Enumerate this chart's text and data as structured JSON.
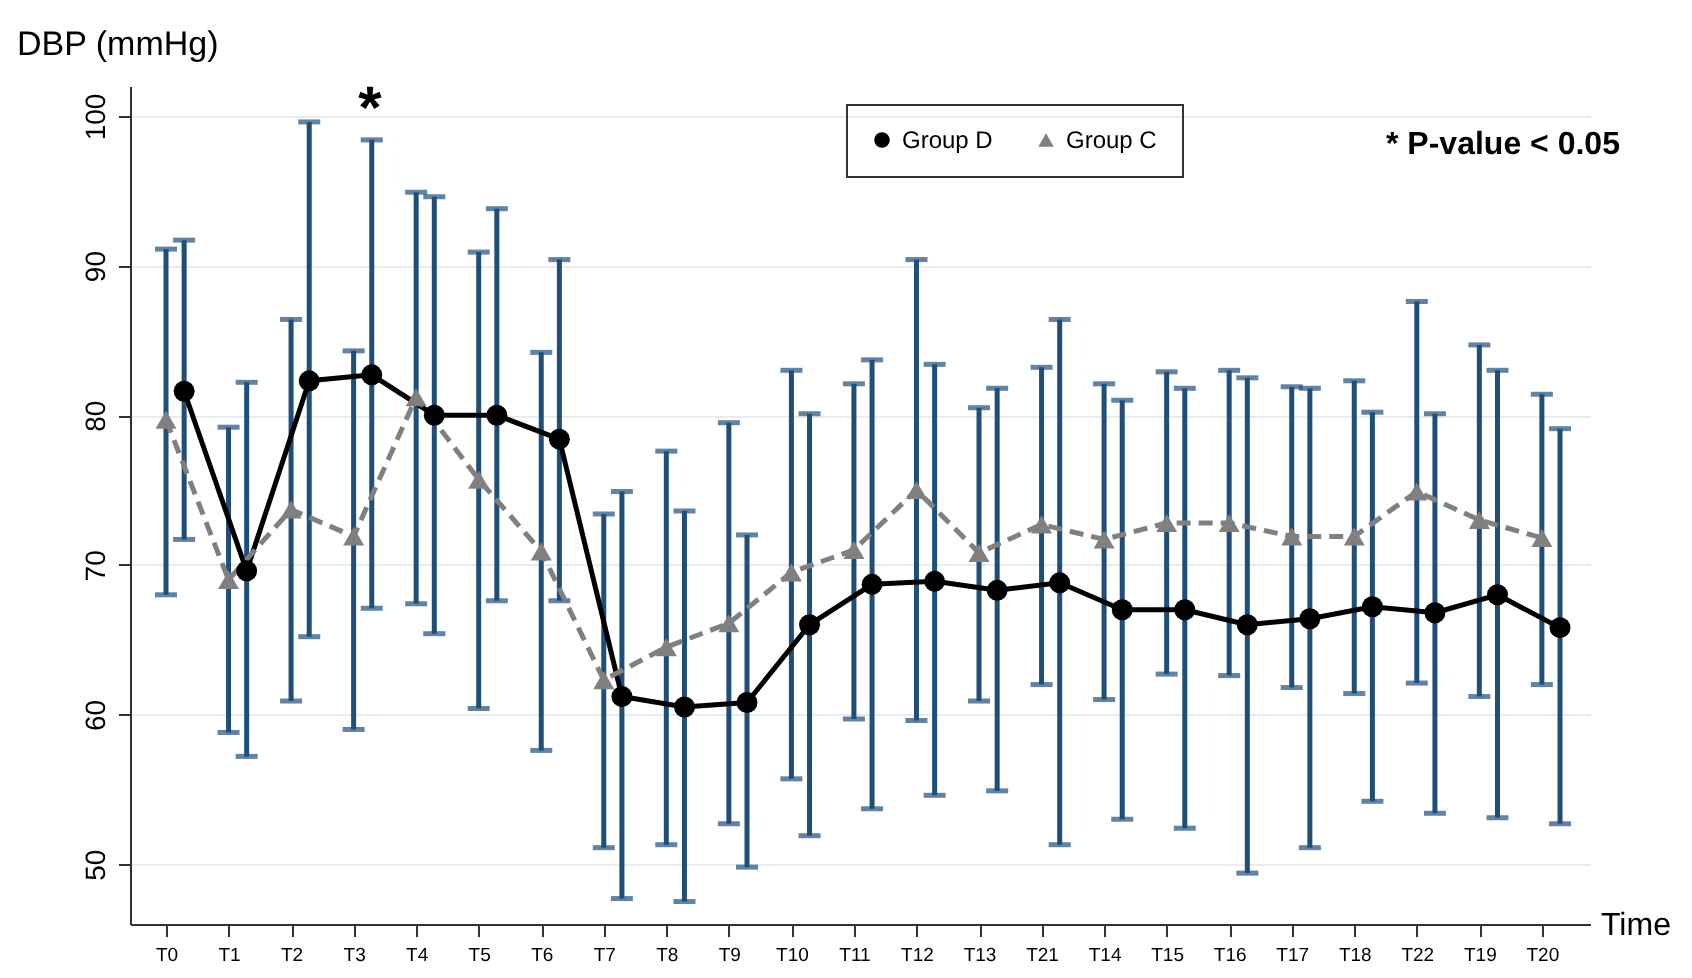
{
  "chart_data": {
    "type": "line",
    "ylabel": "DBP (mmHg)",
    "xlabel": "Time",
    "categories": [
      "T0",
      "T1",
      "T2",
      "T3",
      "T4",
      "T5",
      "T6",
      "T7",
      "T8",
      "T9",
      "T10",
      "T11",
      "T12",
      "T13",
      "T21",
      "T14",
      "T15",
      "T16",
      "T17",
      "T18",
      "T22",
      "T19",
      "T20"
    ],
    "series": [
      {
        "name": "Group D",
        "color": "#000000",
        "marker": "circle",
        "line_style": "solid",
        "values": [
          81.6,
          69.6,
          82.3,
          82.7,
          80.0,
          80.0,
          78.4,
          61.2,
          60.5,
          60.8,
          66.0,
          68.7,
          68.9,
          68.3,
          68.8,
          67.0,
          67.0,
          66.0,
          66.4,
          67.2,
          66.8,
          68.0,
          65.8
        ],
        "errors": [
          [
            71.7,
            91.7
          ],
          [
            57.2,
            82.2
          ],
          [
            65.2,
            99.6
          ],
          [
            67.1,
            98.4
          ],
          [
            65.4,
            94.6
          ],
          [
            67.6,
            93.8
          ],
          [
            67.6,
            90.4
          ],
          [
            47.7,
            74.9
          ],
          [
            47.5,
            73.6
          ],
          [
            49.8,
            72.0
          ],
          [
            51.9,
            80.1
          ],
          [
            53.7,
            83.7
          ],
          [
            54.6,
            83.4
          ],
          [
            54.9,
            81.8
          ],
          [
            51.3,
            86.4
          ],
          [
            53.0,
            81.0
          ],
          [
            52.4,
            81.8
          ],
          [
            49.4,
            82.5
          ],
          [
            51.1,
            81.8
          ],
          [
            54.2,
            80.2
          ],
          [
            53.4,
            80.1
          ],
          [
            53.1,
            83.0
          ],
          [
            52.7,
            79.1
          ]
        ]
      },
      {
        "name": "Group C",
        "color": "#808080",
        "marker": "triangle",
        "line_style": "dashed",
        "values": [
          79.7,
          69.0,
          73.7,
          71.9,
          81.2,
          75.7,
          70.9,
          62.3,
          64.5,
          66.1,
          69.5,
          71.0,
          75.0,
          70.8,
          72.7,
          71.7,
          72.8,
          72.8,
          71.9,
          71.9,
          74.9,
          73.0,
          71.8
        ],
        "errors": [
          [
            68.0,
            91.1
          ],
          [
            58.8,
            79.2
          ],
          [
            60.9,
            86.4
          ],
          [
            59.0,
            84.3
          ],
          [
            67.4,
            94.9
          ],
          [
            60.4,
            90.9
          ],
          [
            57.6,
            84.2
          ],
          [
            51.1,
            73.4
          ],
          [
            51.3,
            77.6
          ],
          [
            52.7,
            79.5
          ],
          [
            55.7,
            83.0
          ],
          [
            59.7,
            82.1
          ],
          [
            59.6,
            90.4
          ],
          [
            60.9,
            80.5
          ],
          [
            62.0,
            83.2
          ],
          [
            61.0,
            82.1
          ],
          [
            62.7,
            82.9
          ],
          [
            62.6,
            83.0
          ],
          [
            61.8,
            81.9
          ],
          [
            61.4,
            82.3
          ],
          [
            62.1,
            87.6
          ],
          [
            61.2,
            84.7
          ],
          [
            62.0,
            81.4
          ]
        ]
      }
    ],
    "ylim": [
      46,
      102
    ],
    "yticks": [
      50,
      60,
      70,
      80,
      90,
      100
    ],
    "grid": "y",
    "legend": "top right",
    "annotations": [
      "*",
      "* P-value < 0.05"
    ]
  }
}
